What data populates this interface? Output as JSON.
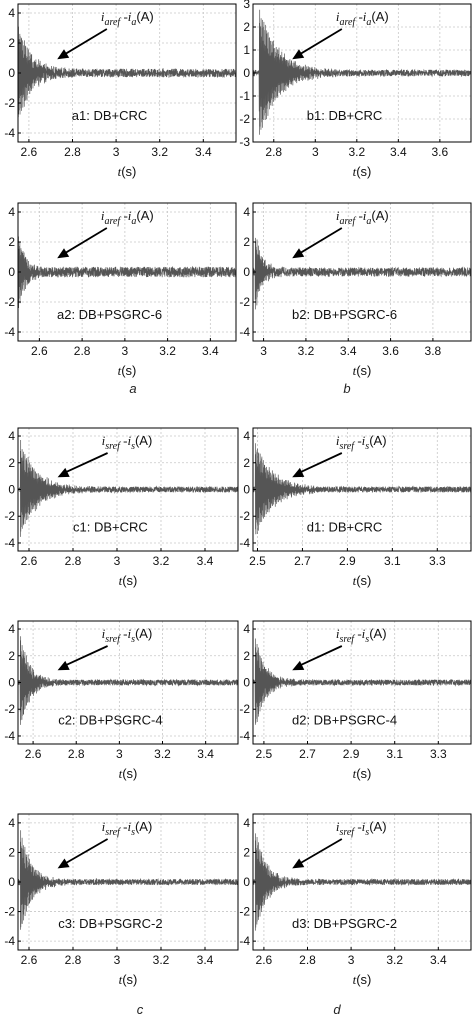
{
  "chart_data": [
    {
      "id": "a1",
      "type": "line",
      "label": "a1: DB+CRC",
      "annotation": {
        "main": "i",
        "sub1": "aref",
        "mid": " -i",
        "sub2": "a",
        "unit": "(A)"
      },
      "xlabel": "t(s)",
      "xlim": [
        2.55,
        3.55
      ],
      "ylim": [
        -4.6,
        4.6
      ],
      "xticks": [
        "2.6",
        "2.8",
        "3",
        "3.2",
        "3.4"
      ],
      "yticks": [
        "4",
        "2",
        "0",
        "-2",
        "-4"
      ],
      "series": {
        "t0": 2.55,
        "amp": 3.3,
        "tau": 0.06,
        "noise": 0.28
      }
    },
    {
      "id": "b1",
      "type": "line",
      "label": "b1: DB+CRC",
      "annotation": {
        "main": "i",
        "sub1": "aref",
        "mid": " -i",
        "sub2": "a",
        "unit": "(A)"
      },
      "xlabel": "t(s)",
      "xlim": [
        2.7,
        3.75
      ],
      "ylim": [
        -3,
        3
      ],
      "xticks": [
        "2.8",
        "3",
        "3.2",
        "3.4",
        "3.6"
      ],
      "yticks": [
        "3",
        "2",
        "1",
        "0",
        "-1",
        "-2",
        "-3"
      ],
      "series": {
        "t0": 2.73,
        "amp": 2.8,
        "tau": 0.09,
        "noise": 0.14
      }
    },
    {
      "id": "a2",
      "type": "line",
      "label": "a2: DB+PSGRC-6",
      "annotation": {
        "main": "i",
        "sub1": "aref",
        "mid": " -i",
        "sub2": "a",
        "unit": "(A)"
      },
      "xlabel": "t(s)",
      "xlim": [
        2.5,
        3.52
      ],
      "ylim": [
        -4.6,
        4.6
      ],
      "xticks": [
        "2.6",
        "2.8",
        "3",
        "3.2",
        "3.4"
      ],
      "yticks": [
        "4",
        "2",
        "0",
        "-2",
        "-4"
      ],
      "series": {
        "t0": 2.5,
        "amp": 2.5,
        "tau": 0.035,
        "noise": 0.35
      }
    },
    {
      "id": "b2",
      "type": "line",
      "label": "b2: DB+PSGRC-6",
      "annotation": {
        "main": "i",
        "sub1": "aref",
        "mid": " -i",
        "sub2": "a",
        "unit": "(A)"
      },
      "xlabel": "t(s)",
      "xlim": [
        2.95,
        3.98
      ],
      "ylim": [
        -4.6,
        4.6
      ],
      "xticks": [
        "3",
        "3.2",
        "3.4",
        "3.6",
        "3.8"
      ],
      "yticks": [
        "4",
        "2",
        "0",
        "-2",
        "-4"
      ],
      "series": {
        "t0": 2.96,
        "amp": 2.5,
        "tau": 0.035,
        "noise": 0.3
      }
    },
    {
      "id": "c1",
      "type": "line",
      "label": "c1: DB+CRC",
      "annotation": {
        "main": "i",
        "sub1": "sref",
        "mid": " -i",
        "sub2": "s",
        "unit": "(A)"
      },
      "xlabel": "t(s)",
      "xlim": [
        2.55,
        3.55
      ],
      "ylim": [
        -4.6,
        4.6
      ],
      "xticks": [
        "2.6",
        "2.8",
        "3",
        "3.2",
        "3.4"
      ],
      "yticks": [
        "4",
        "2",
        "0",
        "-2",
        "-4"
      ],
      "series": {
        "t0": 2.56,
        "amp": 3.6,
        "tau": 0.075,
        "noise": 0.22
      }
    },
    {
      "id": "d1",
      "type": "line",
      "label": "d1: DB+CRC",
      "annotation": {
        "main": "i",
        "sub1": "sref",
        "mid": " -i",
        "sub2": "s",
        "unit": "(A)"
      },
      "xlabel": "t(s)",
      "xlim": [
        2.48,
        3.45
      ],
      "ylim": [
        -4.6,
        4.6
      ],
      "xticks": [
        "2.5",
        "2.7",
        "2.9",
        "3.1",
        "3.3"
      ],
      "yticks": [
        "4",
        "2",
        "0",
        "-2",
        "-4"
      ],
      "series": {
        "t0": 2.49,
        "amp": 3.6,
        "tau": 0.075,
        "noise": 0.22
      }
    },
    {
      "id": "c2",
      "type": "line",
      "label": "c2: DB+PSGRC-4",
      "annotation": {
        "main": "i",
        "sub1": "sref",
        "mid": " -i",
        "sub2": "s",
        "unit": "(A)"
      },
      "xlabel": "t(s)",
      "xlim": [
        2.53,
        3.55
      ],
      "ylim": [
        -4.6,
        4.6
      ],
      "xticks": [
        "2.6",
        "2.8",
        "3",
        "3.2",
        "3.4"
      ],
      "yticks": [
        "4",
        "2",
        "0",
        "-2",
        "-4"
      ],
      "series": {
        "t0": 2.54,
        "amp": 3.5,
        "tau": 0.045,
        "noise": 0.22
      }
    },
    {
      "id": "d2",
      "type": "line",
      "label": "d2: DB+PSGRC-4",
      "annotation": {
        "main": "i",
        "sub1": "sref",
        "mid": " -i",
        "sub2": "s",
        "unit": "(A)"
      },
      "xlabel": "t(s)",
      "xlim": [
        2.45,
        3.45
      ],
      "ylim": [
        -4.6,
        4.6
      ],
      "xticks": [
        "2.5",
        "2.7",
        "2.9",
        "3.1",
        "3.3"
      ],
      "yticks": [
        "4",
        "2",
        "0",
        "-2",
        "-4"
      ],
      "series": {
        "t0": 2.46,
        "amp": 3.5,
        "tau": 0.045,
        "noise": 0.22
      }
    },
    {
      "id": "c3",
      "type": "line",
      "label": "c3: DB+PSGRC-2",
      "annotation": {
        "main": "i",
        "sub1": "sref",
        "mid": " -i",
        "sub2": "s",
        "unit": "(A)"
      },
      "xlabel": "t(s)",
      "xlim": [
        2.55,
        3.55
      ],
      "ylim": [
        -4.6,
        4.6
      ],
      "xticks": [
        "2.6",
        "2.8",
        "3",
        "3.2",
        "3.4"
      ],
      "yticks": [
        "4",
        "2",
        "0",
        "-2",
        "-4"
      ],
      "series": {
        "t0": 2.56,
        "amp": 3.5,
        "tau": 0.05,
        "noise": 0.2
      }
    },
    {
      "id": "d3",
      "type": "line",
      "label": "d3: DB+PSGRC-2",
      "annotation": {
        "main": "i",
        "sub1": "sref",
        "mid": " -i",
        "sub2": "s",
        "unit": "(A)"
      },
      "xlabel": "t(s)",
      "xlim": [
        2.55,
        3.55
      ],
      "ylim": [
        -4.6,
        4.6
      ],
      "xticks": [
        "2.6",
        "2.8",
        "3",
        "3.2",
        "3.4"
      ],
      "yticks": [
        "4",
        "2",
        "0",
        "-2",
        "-4"
      ],
      "series": {
        "t0": 2.56,
        "amp": 3.5,
        "tau": 0.05,
        "noise": 0.2
      }
    }
  ],
  "captions": {
    "a": "a",
    "b": "b",
    "c": "c",
    "d": "d"
  },
  "colors": {
    "trace": "#555555",
    "grid": "#c8c8c8",
    "axis": "#000000"
  }
}
